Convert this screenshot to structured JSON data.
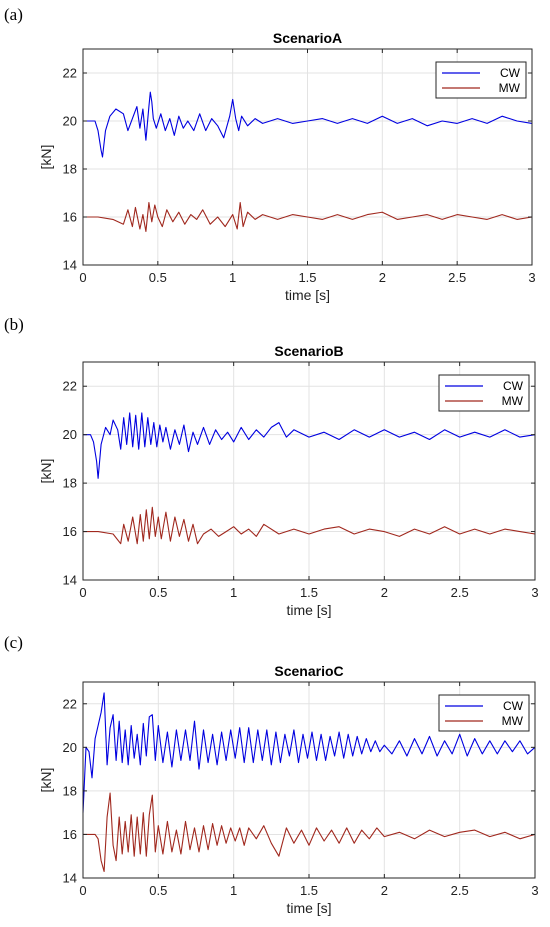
{
  "chart_data": [
    {
      "type": "line",
      "panel": "(a)",
      "title": "ScenarioA",
      "xlabel": "time [s]",
      "ylabel": "[kN]",
      "xlim": [
        0,
        3
      ],
      "ylim": [
        14,
        23
      ],
      "xticks": [
        0,
        0.5,
        1,
        1.5,
        2,
        2.5,
        3
      ],
      "xtick_labels": [
        "0",
        "0.5",
        "1",
        "1.5",
        "2",
        "2.5",
        "3"
      ],
      "yticks": [
        14,
        16,
        18,
        20,
        22
      ],
      "ytick_labels": [
        "14",
        "16",
        "18",
        "20",
        "22"
      ],
      "grid": true,
      "legend_position": "top-right",
      "series": [
        {
          "name": "CW",
          "color": "#0000e0",
          "x": [
            0,
            0.08,
            0.1,
            0.12,
            0.13,
            0.15,
            0.18,
            0.22,
            0.27,
            0.3,
            0.33,
            0.36,
            0.38,
            0.4,
            0.42,
            0.44,
            0.45,
            0.46,
            0.47,
            0.49,
            0.52,
            0.55,
            0.58,
            0.61,
            0.64,
            0.67,
            0.7,
            0.74,
            0.78,
            0.82,
            0.86,
            0.9,
            0.94,
            0.98,
            1.0,
            1.02,
            1.04,
            1.06,
            1.1,
            1.15,
            1.2,
            1.3,
            1.4,
            1.5,
            1.6,
            1.7,
            1.8,
            1.9,
            2.0,
            2.1,
            2.2,
            2.3,
            2.4,
            2.5,
            2.6,
            2.7,
            2.8,
            2.9,
            3.0
          ],
          "y": [
            20.0,
            20.0,
            19.6,
            18.8,
            18.5,
            19.6,
            20.2,
            20.5,
            20.3,
            19.6,
            20.1,
            20.6,
            19.7,
            20.5,
            19.2,
            20.6,
            21.2,
            20.8,
            20.1,
            19.7,
            20.3,
            19.6,
            20.1,
            19.4,
            20.2,
            19.7,
            20.0,
            19.6,
            20.3,
            19.6,
            20.1,
            19.8,
            19.3,
            20.2,
            20.9,
            20.1,
            19.6,
            20.2,
            19.8,
            20.1,
            19.9,
            20.1,
            19.9,
            20.0,
            20.1,
            19.9,
            20.1,
            19.9,
            20.2,
            19.9,
            20.1,
            19.8,
            20.0,
            19.9,
            20.1,
            19.9,
            20.2,
            20.0,
            19.9
          ]
        },
        {
          "name": "MW",
          "color": "#a0281e",
          "x": [
            0,
            0.1,
            0.2,
            0.27,
            0.3,
            0.33,
            0.35,
            0.38,
            0.4,
            0.42,
            0.44,
            0.46,
            0.48,
            0.5,
            0.53,
            0.56,
            0.6,
            0.64,
            0.68,
            0.72,
            0.76,
            0.8,
            0.85,
            0.9,
            0.95,
            1.0,
            1.03,
            1.05,
            1.07,
            1.1,
            1.15,
            1.2,
            1.3,
            1.4,
            1.5,
            1.6,
            1.7,
            1.8,
            1.9,
            2.0,
            2.1,
            2.2,
            2.3,
            2.4,
            2.5,
            2.6,
            2.7,
            2.8,
            2.9,
            3.0
          ],
          "y": [
            16.0,
            16.0,
            15.9,
            15.7,
            16.3,
            15.6,
            16.4,
            15.5,
            16.1,
            15.4,
            16.6,
            15.8,
            16.5,
            16.0,
            15.6,
            16.3,
            15.8,
            16.2,
            15.7,
            16.1,
            15.9,
            16.3,
            15.7,
            16.0,
            15.6,
            16.1,
            15.5,
            16.6,
            15.6,
            16.2,
            15.9,
            16.1,
            15.9,
            16.1,
            16.0,
            15.9,
            16.1,
            15.9,
            16.1,
            16.2,
            15.9,
            16.0,
            16.1,
            15.9,
            16.1,
            16.0,
            15.9,
            16.1,
            15.9,
            16.0
          ]
        }
      ]
    },
    {
      "type": "line",
      "panel": "(b)",
      "title": "ScenarioB",
      "xlabel": "time [s]",
      "ylabel": "[kN]",
      "xlim": [
        0,
        3
      ],
      "ylim": [
        14,
        23
      ],
      "xticks": [
        0,
        0.5,
        1,
        1.5,
        2,
        2.5,
        3
      ],
      "xtick_labels": [
        "0",
        "0.5",
        "1",
        "1.5",
        "2",
        "2.5",
        "3"
      ],
      "yticks": [
        14,
        16,
        18,
        20,
        22
      ],
      "ytick_labels": [
        "14",
        "16",
        "18",
        "20",
        "22"
      ],
      "grid": true,
      "legend_position": "top-right",
      "series": [
        {
          "name": "CW",
          "color": "#0000e0",
          "x": [
            0,
            0.05,
            0.07,
            0.09,
            0.1,
            0.12,
            0.15,
            0.18,
            0.2,
            0.23,
            0.25,
            0.27,
            0.29,
            0.31,
            0.33,
            0.35,
            0.37,
            0.39,
            0.41,
            0.43,
            0.45,
            0.47,
            0.49,
            0.51,
            0.53,
            0.55,
            0.58,
            0.61,
            0.64,
            0.67,
            0.7,
            0.73,
            0.76,
            0.8,
            0.84,
            0.88,
            0.92,
            0.96,
            1.0,
            1.05,
            1.1,
            1.15,
            1.2,
            1.25,
            1.3,
            1.35,
            1.4,
            1.5,
            1.6,
            1.7,
            1.8,
            1.9,
            2.0,
            2.1,
            2.2,
            2.3,
            2.4,
            2.5,
            2.6,
            2.7,
            2.8,
            2.9,
            3.0
          ],
          "y": [
            20.0,
            20.0,
            19.7,
            18.9,
            18.2,
            19.6,
            20.3,
            20.0,
            20.6,
            20.2,
            19.4,
            20.7,
            19.6,
            20.9,
            19.5,
            20.8,
            19.4,
            20.9,
            19.5,
            20.7,
            19.6,
            20.5,
            19.5,
            20.4,
            19.7,
            20.3,
            19.4,
            20.2,
            19.6,
            20.4,
            19.3,
            20.1,
            19.6,
            20.3,
            19.6,
            20.2,
            19.8,
            20.1,
            19.7,
            20.3,
            19.8,
            20.2,
            19.9,
            20.3,
            20.5,
            19.9,
            20.2,
            19.9,
            20.1,
            19.8,
            20.2,
            19.9,
            20.2,
            19.9,
            20.1,
            19.8,
            20.2,
            19.9,
            20.1,
            19.9,
            20.2,
            19.9,
            20.0
          ]
        },
        {
          "name": "MW",
          "color": "#a0281e",
          "x": [
            0,
            0.1,
            0.2,
            0.25,
            0.27,
            0.3,
            0.33,
            0.36,
            0.38,
            0.4,
            0.42,
            0.44,
            0.46,
            0.48,
            0.5,
            0.52,
            0.55,
            0.58,
            0.61,
            0.64,
            0.67,
            0.7,
            0.73,
            0.76,
            0.8,
            0.85,
            0.9,
            0.95,
            1.0,
            1.05,
            1.1,
            1.15,
            1.2,
            1.3,
            1.4,
            1.5,
            1.6,
            1.7,
            1.8,
            1.9,
            2.0,
            2.1,
            2.2,
            2.3,
            2.4,
            2.5,
            2.6,
            2.7,
            2.8,
            2.9,
            3.0
          ],
          "y": [
            16.0,
            16.0,
            15.9,
            15.5,
            16.3,
            15.6,
            16.6,
            15.5,
            16.7,
            15.6,
            16.9,
            15.7,
            17.0,
            15.8,
            16.6,
            15.7,
            16.8,
            15.6,
            16.6,
            15.8,
            16.5,
            15.6,
            16.3,
            15.5,
            15.9,
            16.1,
            15.8,
            16.0,
            16.2,
            15.9,
            16.1,
            15.8,
            16.3,
            15.9,
            16.1,
            15.9,
            16.1,
            16.2,
            15.9,
            16.1,
            16.0,
            15.8,
            16.1,
            15.9,
            16.2,
            15.9,
            16.1,
            15.9,
            16.1,
            16.0,
            15.9
          ]
        }
      ]
    },
    {
      "type": "line",
      "panel": "(c)",
      "title": "ScenarioC",
      "xlabel": "time [s]",
      "ylabel": "[kN]",
      "xlim": [
        0,
        3
      ],
      "ylim": [
        14,
        23
      ],
      "xticks": [
        0,
        0.5,
        1,
        1.5,
        2,
        2.5,
        3
      ],
      "xtick_labels": [
        "0",
        "0.5",
        "1",
        "1.5",
        "2",
        "2.5",
        "3"
      ],
      "yticks": [
        14,
        16,
        18,
        20,
        22
      ],
      "ytick_labels": [
        "14",
        "16",
        "18",
        "20",
        "22"
      ],
      "grid": true,
      "legend_position": "top-right",
      "series": [
        {
          "name": "CW",
          "color": "#0000e0",
          "x": [
            0,
            0.02,
            0.04,
            0.06,
            0.08,
            0.1,
            0.12,
            0.14,
            0.16,
            0.18,
            0.2,
            0.22,
            0.24,
            0.26,
            0.28,
            0.3,
            0.32,
            0.34,
            0.36,
            0.38,
            0.4,
            0.42,
            0.44,
            0.46,
            0.48,
            0.5,
            0.53,
            0.56,
            0.59,
            0.62,
            0.65,
            0.68,
            0.71,
            0.74,
            0.77,
            0.8,
            0.83,
            0.86,
            0.89,
            0.92,
            0.95,
            0.98,
            1.01,
            1.04,
            1.07,
            1.1,
            1.13,
            1.16,
            1.19,
            1.22,
            1.25,
            1.28,
            1.31,
            1.34,
            1.37,
            1.4,
            1.43,
            1.46,
            1.49,
            1.52,
            1.55,
            1.58,
            1.61,
            1.64,
            1.67,
            1.7,
            1.73,
            1.76,
            1.79,
            1.82,
            1.85,
            1.88,
            1.91,
            1.94,
            1.97,
            2.0,
            2.05,
            2.1,
            2.15,
            2.2,
            2.25,
            2.3,
            2.35,
            2.4,
            2.45,
            2.5,
            2.55,
            2.6,
            2.65,
            2.7,
            2.75,
            2.8,
            2.85,
            2.9,
            2.95,
            3.0
          ],
          "y": [
            17.0,
            20.0,
            19.8,
            18.6,
            20.4,
            21.0,
            21.6,
            22.5,
            19.2,
            20.9,
            21.5,
            19.4,
            21.2,
            19.3,
            20.8,
            19.2,
            21.0,
            19.5,
            20.6,
            19.2,
            21.1,
            19.6,
            21.4,
            21.5,
            19.4,
            21.0,
            19.3,
            20.7,
            19.1,
            20.8,
            19.4,
            20.8,
            19.4,
            21.2,
            19.0,
            20.8,
            19.3,
            20.6,
            19.2,
            20.7,
            19.4,
            20.8,
            19.5,
            20.9,
            19.3,
            20.9,
            19.3,
            20.8,
            19.4,
            20.8,
            19.2,
            20.7,
            19.3,
            20.6,
            19.6,
            20.8,
            19.3,
            20.6,
            19.5,
            20.7,
            19.4,
            20.6,
            19.4,
            20.5,
            19.6,
            20.7,
            19.5,
            20.6,
            19.6,
            20.5,
            19.7,
            20.4,
            19.8,
            20.3,
            19.8,
            20.1,
            19.7,
            20.3,
            19.6,
            20.4,
            19.7,
            20.5,
            19.6,
            20.3,
            19.7,
            20.6,
            19.6,
            20.4,
            19.7,
            20.3,
            19.7,
            20.3,
            19.8,
            20.3,
            19.7,
            20.0
          ]
        },
        {
          "name": "MW",
          "color": "#a0281e",
          "x": [
            0,
            0.08,
            0.1,
            0.12,
            0.14,
            0.16,
            0.18,
            0.2,
            0.22,
            0.24,
            0.26,
            0.28,
            0.3,
            0.32,
            0.34,
            0.36,
            0.38,
            0.4,
            0.42,
            0.44,
            0.46,
            0.48,
            0.5,
            0.53,
            0.56,
            0.59,
            0.62,
            0.65,
            0.68,
            0.71,
            0.74,
            0.77,
            0.8,
            0.83,
            0.86,
            0.89,
            0.92,
            0.95,
            0.98,
            1.01,
            1.04,
            1.07,
            1.1,
            1.15,
            1.2,
            1.25,
            1.3,
            1.35,
            1.4,
            1.45,
            1.5,
            1.55,
            1.6,
            1.65,
            1.7,
            1.75,
            1.8,
            1.85,
            1.9,
            1.95,
            2.0,
            2.1,
            2.2,
            2.3,
            2.4,
            2.5,
            2.6,
            2.7,
            2.8,
            2.9,
            3.0
          ],
          "y": [
            16.0,
            16.0,
            15.8,
            14.8,
            14.3,
            16.8,
            17.9,
            15.5,
            14.8,
            16.8,
            15.1,
            16.6,
            15.2,
            16.9,
            15.0,
            16.8,
            15.1,
            17.0,
            15.0,
            16.9,
            17.8,
            15.2,
            16.4,
            15.1,
            16.6,
            15.2,
            16.2,
            15.1,
            16.6,
            15.3,
            16.3,
            15.2,
            16.4,
            15.3,
            16.5,
            15.5,
            16.4,
            15.6,
            16.3,
            15.7,
            16.3,
            15.5,
            16.3,
            15.8,
            16.4,
            15.6,
            15.0,
            16.3,
            15.6,
            16.2,
            15.5,
            16.3,
            15.7,
            16.2,
            15.6,
            16.3,
            15.6,
            16.2,
            15.8,
            16.3,
            15.9,
            16.1,
            15.8,
            16.2,
            15.9,
            16.1,
            16.2,
            15.9,
            16.1,
            15.8,
            16.0
          ]
        }
      ]
    }
  ]
}
